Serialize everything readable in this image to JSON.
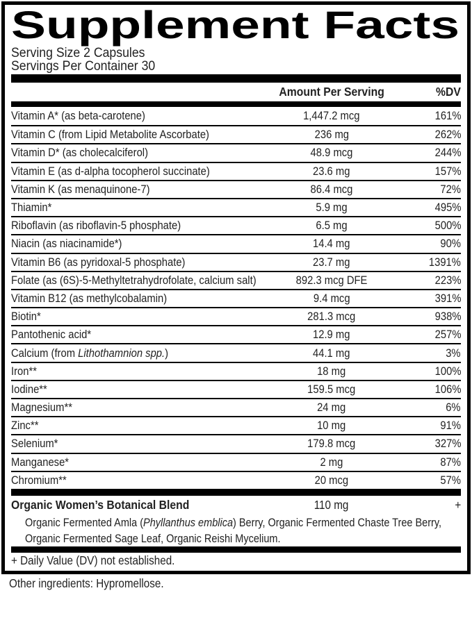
{
  "colors": {
    "ink": "#000000"
  },
  "label": {
    "title": "Supplement Facts",
    "serving_size": "Serving Size 2 Capsules",
    "servings_per_container": "Servings Per Container 30",
    "header": {
      "amount": "Amount Per Serving",
      "dv": "%DV"
    },
    "nutrients": [
      {
        "name": "Vitamin A* (as beta-carotene)",
        "amount": "1,447.2 mcg",
        "dv": "161%"
      },
      {
        "name": "Vitamin C (from Lipid Metabolite Ascorbate)",
        "amount": "236 mg",
        "dv": "262%"
      },
      {
        "name": "Vitamin D* (as cholecalciferol)",
        "amount": "48.9 mcg",
        "dv": "244%"
      },
      {
        "name": "Vitamin E (as d-alpha tocopherol succinate)",
        "amount": "23.6 mg",
        "dv": "157%"
      },
      {
        "name": "Vitamin K (as menaquinone-7)",
        "amount": "86.4 mcg",
        "dv": "72%"
      },
      {
        "name": "Thiamin*",
        "amount": "5.9 mg",
        "dv": "495%"
      },
      {
        "name": "Riboflavin (as riboflavin-5 phosphate)",
        "amount": "6.5 mg",
        "dv": "500%"
      },
      {
        "name": "Niacin (as niacinamide*)",
        "amount": "14.4 mg",
        "dv": "90%"
      },
      {
        "name": "Vitamin B6 (as pyridoxal-5 phosphate)",
        "amount": "23.7 mg",
        "dv": "1391%"
      },
      {
        "name": "Folate (as (6S)-5-Methyltetrahydrofolate, calcium salt)",
        "amount": "892.3 mcg DFE",
        "dv": "223%"
      },
      {
        "name": "Vitamin B12 (as methylcobalamin)",
        "amount": "9.4 mcg",
        "dv": "391%"
      },
      {
        "name": "Biotin*",
        "amount": "281.3 mcg",
        "dv": "938%"
      },
      {
        "name": "Pantothenic acid*",
        "amount": "12.9 mg",
        "dv": "257%"
      },
      {
        "name_parts": [
          {
            "text": "Calcium (from "
          },
          {
            "text": "Lithothamnion spp.",
            "italic": true
          },
          {
            "text": ")"
          }
        ],
        "amount": "44.1 mg",
        "dv": "3%"
      },
      {
        "name": "Iron**",
        "amount": "18 mg",
        "dv": "100%"
      },
      {
        "name": "Iodine**",
        "amount": "159.5 mcg",
        "dv": "106%"
      },
      {
        "name": "Magnesium**",
        "amount": "24 mg",
        "dv": "6%"
      },
      {
        "name": "Zinc**",
        "amount": "10 mg",
        "dv": "91%"
      },
      {
        "name": "Selenium*",
        "amount": "179.8 mcg",
        "dv": "327%"
      },
      {
        "name": "Manganese*",
        "amount": "2 mg",
        "dv": "87%"
      },
      {
        "name": "Chromium**",
        "amount": "20 mcg",
        "dv": "57%"
      }
    ],
    "blend": {
      "name": "Organic Women’s Botanical Blend",
      "amount": "110 mg",
      "dv": "+",
      "description_parts": [
        {
          "text": "Organic Fermented Amla ("
        },
        {
          "text": "Phyllanthus emblica",
          "italic": true
        },
        {
          "text": ") Berry, Organic Fermented Chaste Tree Berry, Organic Fermented Sage Leaf, Organic Reishi Mycelium."
        }
      ]
    },
    "footnote": "+ Daily Value (DV) not established.",
    "other_ingredients": "Other ingredients: Hypromellose."
  }
}
